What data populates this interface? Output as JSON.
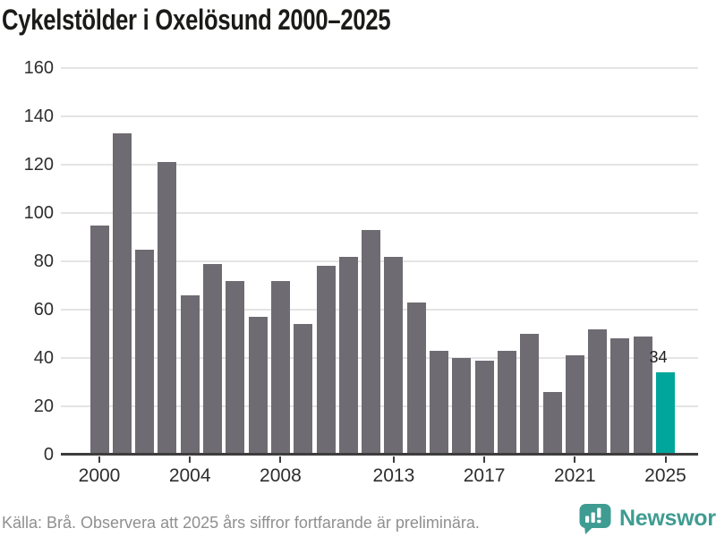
{
  "title": "Cykelstölder i Oxelösund 2000–2025",
  "chart_data": {
    "type": "bar",
    "title": "Cykelstölder i Oxelösund 2000–2025",
    "categories": [
      "2000",
      "2001",
      "2002",
      "2003",
      "2004",
      "2005",
      "2006",
      "2007",
      "2008",
      "2009",
      "2010",
      "2011",
      "2012",
      "2013",
      "2014",
      "2015",
      "2016",
      "2017",
      "2018",
      "2019",
      "2020",
      "2021",
      "2022",
      "2023",
      "2024",
      "2025"
    ],
    "values": [
      95,
      133,
      85,
      121,
      66,
      79,
      72,
      57,
      72,
      54,
      78,
      82,
      93,
      82,
      63,
      43,
      40,
      39,
      43,
      50,
      26,
      41,
      52,
      48,
      49,
      34
    ],
    "xlabel": "",
    "ylabel": "",
    "ylim": [
      0,
      160
    ],
    "yticks": [
      0,
      20,
      40,
      60,
      80,
      100,
      120,
      140,
      160
    ],
    "xtick_labels": [
      "2000",
      "2004",
      "2008",
      "2013",
      "2017",
      "2021",
      "2025"
    ],
    "grid": true,
    "legend_position": "none",
    "bar_color": "#6f6b72",
    "highlight_index": 25,
    "highlight_color": "#00a69b",
    "data_label": {
      "index": 25,
      "text": "34"
    }
  },
  "footer": {
    "source_note": "Källa: Brå. Observera att 2025 års siffror fortfarande är preliminära.",
    "brand": "Newsworthy",
    "brand_color": "#3f9c92"
  },
  "icons": {
    "logo": "newsworthy-speech-bubble-chart-icon"
  }
}
